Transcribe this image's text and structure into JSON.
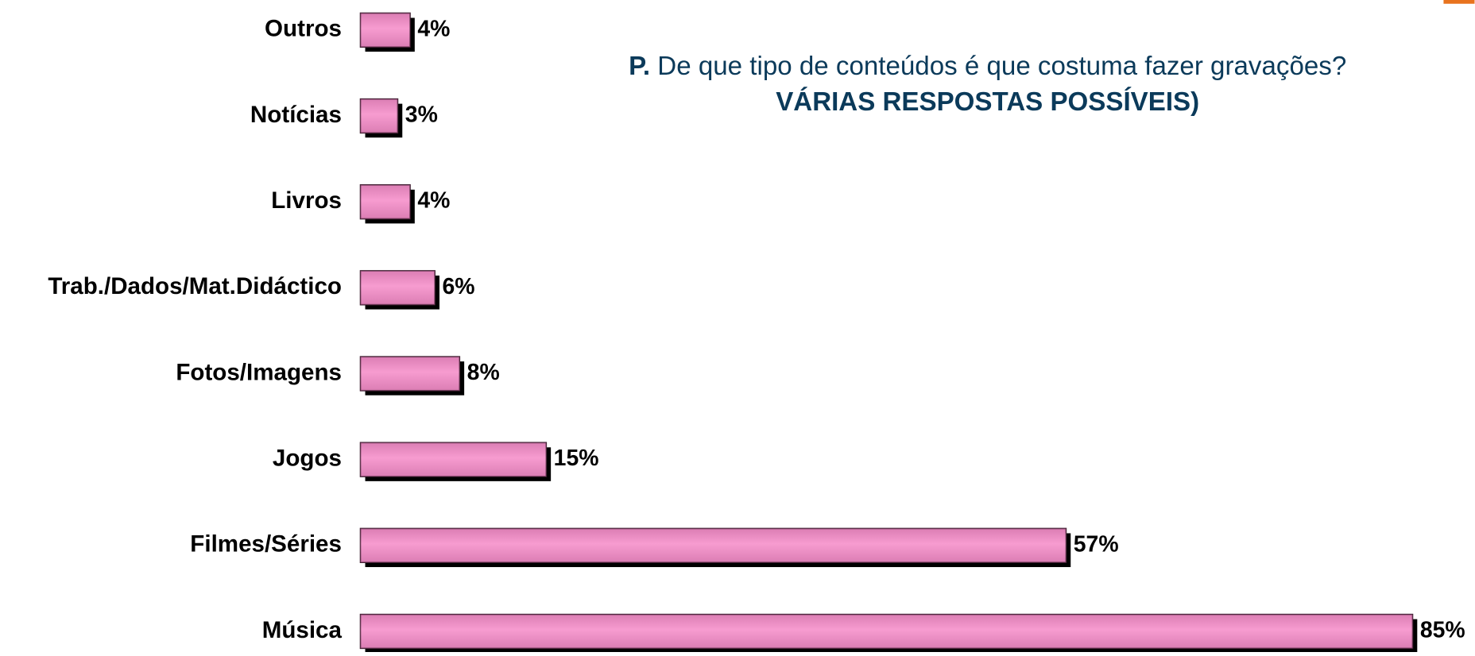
{
  "chart_data": {
    "type": "bar",
    "orientation": "horizontal",
    "title": {
      "prefix": "P.",
      "question": "De que tipo de conteúdos é que costuma fazer gravações?",
      "note": "VÁRIAS RESPOSTAS POSSÍVEIS)"
    },
    "categories": [
      "Outros",
      "Notícias",
      "Livros",
      "Trab./Dados/Mat.Didáctico",
      "Fotos/Imagens",
      "Jogos",
      "Filmes/Séries",
      "Música"
    ],
    "values": [
      4,
      3,
      4,
      6,
      8,
      15,
      57,
      85
    ],
    "value_labels": [
      "4%",
      "3%",
      "4%",
      "6%",
      "8%",
      "15%",
      "57%",
      "85%"
    ],
    "color": "#f48fc8",
    "xlim": [
      0,
      85
    ]
  }
}
